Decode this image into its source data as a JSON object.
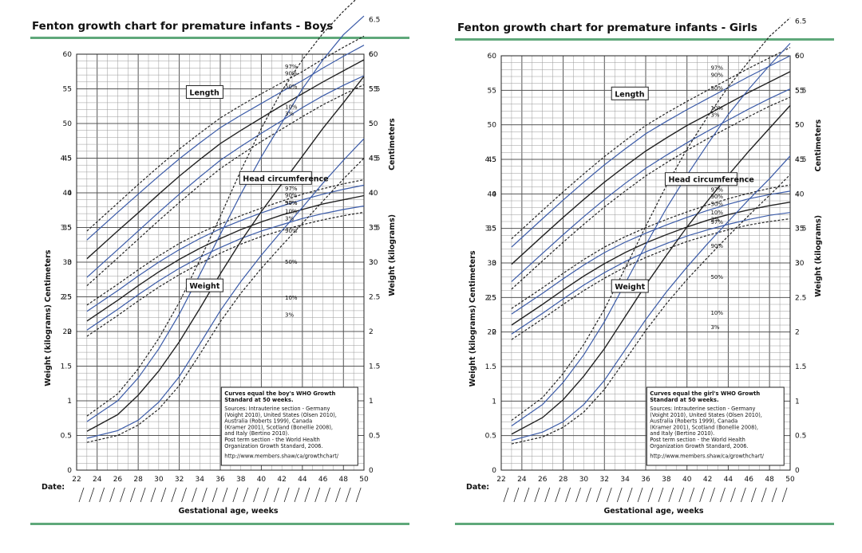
{
  "colors": {
    "median": "#222222",
    "inner": "#3b5ba8",
    "outer": "#222222",
    "rule": "#5fa87a"
  },
  "panels": [
    {
      "title": "Fenton growth chart for premature infants - Boys",
      "info": {
        "heading_lines": [
          "Curves equal the boy's WHO Growth",
          "Standard at 50 weeks."
        ],
        "body_lines": [
          "Sources: Intrauterine section - Germany",
          "(Voight 2010), United States (Olsen 2010),",
          "Australia (Roberts 1999), Canada",
          "(Kramer 2001), Scotland (Bonellie 2008),",
          "and Italy (Bertino 2010).",
          "Post term section - the World Health",
          "Organization Growth Standard, 2006."
        ],
        "url": "http://www.members.shaw/ca/growthchart/"
      }
    },
    {
      "title": "Fenton growth chart for premature infants - Girls",
      "info": {
        "heading_lines": [
          "Curves equal the girl's WHO Growth",
          "Standard at 50 weeks."
        ],
        "body_lines": [
          "Sources: Intrauterine section - Germany",
          "(Voight 2010), United States (Olsen 2010),",
          "Australia (Roberts 1999), Canada",
          "(Kramer 2001), Scotland (Bonellie 2008),",
          "and Italy (Bertino 2010).",
          "Post term section - the World Health",
          "Organization Growth Standard, 2006."
        ],
        "url": "http://www.members.shaw/ca/growthchart/"
      }
    }
  ],
  "chart_data": [
    {
      "type": "line",
      "title": "Fenton growth chart for premature infants - Boys",
      "xlabel": "Gestational age, weeks",
      "x_left_label": "Date:",
      "ylabel_left_top": "Centimeters",
      "ylabel_left_bottom": "Weight (kilograms)",
      "ylabel_right_top": "Centimeters",
      "ylabel_right_bottom": "Weight (kilograms)",
      "xlim": [
        22,
        50
      ],
      "x_ticks": [
        "22",
        "24",
        "26",
        "28",
        "30",
        "32",
        "34",
        "36",
        "38",
        "40",
        "42",
        "44",
        "46",
        "48",
        "50"
      ],
      "cm_ticks_left": [
        "60",
        "55",
        "50",
        "45",
        "40",
        "35",
        "30",
        "25",
        "20"
      ],
      "kg_ticks_left": [
        "4.5",
        "4",
        "3.5",
        "3",
        "2.5",
        "2",
        "1.5",
        "1",
        "0.5",
        "0"
      ],
      "cm_ticks_right": [
        "60",
        "55",
        "50",
        "45",
        "40",
        "35",
        "30"
      ],
      "kg_ticks_right": [
        "6.5",
        "6",
        "5.5",
        "5",
        "4.5",
        "4",
        "3.5",
        "3",
        "2.5",
        "2",
        "1.5",
        "1",
        "0.5",
        "0"
      ],
      "groups": [
        {
          "label": "Length",
          "unit": "cm",
          "percentile_labels": [
            "97%",
            "90%",
            "50%",
            "10%",
            "3%"
          ],
          "x": [
            23,
            26,
            28,
            30,
            32,
            34,
            36,
            38,
            40,
            42,
            44,
            46,
            48,
            50
          ],
          "series": [
            {
              "name": "97%",
              "values": [
                34.5,
                38.5,
                41.2,
                43.8,
                46.3,
                48.6,
                50.8,
                52.6,
                54.3,
                55.9,
                57.5,
                59.3,
                61.0,
                62.6
              ]
            },
            {
              "name": "90%",
              "values": [
                33.2,
                37.2,
                39.8,
                42.4,
                44.9,
                47.2,
                49.4,
                51.2,
                52.9,
                54.6,
                56.2,
                58.0,
                59.7,
                61.3
              ]
            },
            {
              "name": "50%",
              "values": [
                30.5,
                34.5,
                37.1,
                39.8,
                42.4,
                44.8,
                47.1,
                49.0,
                50.8,
                52.6,
                54.3,
                56.0,
                57.6,
                59.2
              ]
            },
            {
              "name": "10%",
              "values": [
                27.8,
                31.8,
                34.5,
                37.2,
                39.8,
                42.3,
                44.7,
                46.7,
                48.6,
                50.4,
                52.3,
                54.0,
                55.5,
                56.9
              ]
            },
            {
              "name": "3%",
              "values": [
                26.6,
                30.6,
                33.3,
                36.0,
                38.6,
                41.1,
                43.5,
                45.5,
                47.4,
                49.2,
                51.0,
                52.7,
                54.2,
                55.6
              ]
            }
          ]
        },
        {
          "label": "Head circumference",
          "unit": "cm",
          "percentile_labels": [
            "97%",
            "90%",
            "50%",
            "10%",
            "3%"
          ],
          "x": [
            23,
            26,
            28,
            30,
            32,
            34,
            36,
            38,
            40,
            42,
            44,
            46,
            48,
            50
          ],
          "series": [
            {
              "name": "97%",
              "values": [
                23.8,
                26.8,
                28.9,
                30.9,
                32.7,
                34.2,
                35.5,
                36.7,
                37.8,
                38.8,
                39.8,
                40.6,
                41.3,
                41.9
              ]
            },
            {
              "name": "90%",
              "values": [
                22.9,
                25.9,
                28.0,
                30.0,
                31.8,
                33.4,
                34.8,
                36.0,
                37.1,
                38.1,
                39.0,
                39.8,
                40.5,
                41.1
              ]
            },
            {
              "name": "50%",
              "values": [
                21.5,
                24.5,
                26.6,
                28.6,
                30.4,
                32.0,
                33.4,
                34.7,
                35.8,
                36.8,
                37.6,
                38.4,
                39.0,
                39.6
              ]
            },
            {
              "name": "10%",
              "values": [
                20.2,
                23.2,
                25.3,
                27.3,
                29.1,
                30.7,
                32.1,
                33.4,
                34.5,
                35.4,
                36.3,
                37.0,
                37.6,
                38.1
              ]
            },
            {
              "name": "3%",
              "values": [
                19.3,
                22.3,
                24.4,
                26.4,
                28.2,
                29.8,
                31.3,
                32.6,
                33.7,
                34.6,
                35.4,
                36.1,
                36.7,
                37.2
              ]
            }
          ]
        },
        {
          "label": "Weight",
          "unit": "kg",
          "percentile_labels": [
            "97%",
            "90%",
            "50%",
            "10%",
            "3%"
          ],
          "x": [
            23,
            26,
            28,
            30,
            32,
            34,
            36,
            38,
            40,
            42,
            44,
            46,
            48,
            50
          ],
          "series": [
            {
              "name": "97%",
              "values": [
                0.78,
                1.1,
                1.46,
                1.9,
                2.42,
                3.03,
                3.66,
                4.32,
                4.93,
                5.47,
                5.92,
                6.3,
                6.62,
                6.9
              ]
            },
            {
              "name": "90%",
              "values": [
                0.7,
                1.0,
                1.33,
                1.75,
                2.25,
                2.82,
                3.4,
                3.98,
                4.52,
                5.01,
                5.5,
                5.92,
                6.28,
                6.55
              ]
            },
            {
              "name": "50%",
              "values": [
                0.56,
                0.8,
                1.08,
                1.43,
                1.85,
                2.33,
                2.83,
                3.3,
                3.73,
                4.13,
                4.53,
                4.93,
                5.3,
                5.68
              ]
            },
            {
              "name": "10%",
              "values": [
                0.46,
                0.57,
                0.72,
                0.98,
                1.35,
                1.82,
                2.3,
                2.72,
                3.1,
                3.45,
                3.79,
                4.14,
                4.47,
                4.78
              ]
            },
            {
              "name": "3%",
              "values": [
                0.4,
                0.5,
                0.65,
                0.88,
                1.22,
                1.67,
                2.14,
                2.55,
                2.91,
                3.24,
                3.56,
                3.88,
                4.2,
                4.5
              ]
            }
          ]
        }
      ]
    },
    {
      "type": "line",
      "title": "Fenton growth chart for premature infants - Girls",
      "xlabel": "Gestational age, weeks",
      "x_left_label": "Date:",
      "ylabel_left_top": "Centimeters",
      "ylabel_left_bottom": "Weight (kilograms)",
      "ylabel_right_top": "Centimeters",
      "ylabel_right_bottom": "Weight (kilograms)",
      "xlim": [
        22,
        50
      ],
      "x_ticks": [
        "22",
        "24",
        "26",
        "28",
        "30",
        "32",
        "34",
        "36",
        "38",
        "40",
        "42",
        "44",
        "46",
        "48",
        "50"
      ],
      "cm_ticks_left": [
        "60",
        "55",
        "50",
        "45",
        "40",
        "35",
        "30",
        "25",
        "20"
      ],
      "kg_ticks_left": [
        "4.5",
        "4",
        "3.5",
        "3",
        "2.5",
        "2",
        "1.5",
        "1",
        "0.5",
        "0"
      ],
      "cm_ticks_right": [
        "60",
        "55",
        "50",
        "45",
        "40",
        "35",
        "30"
      ],
      "kg_ticks_right": [
        "6.5",
        "6",
        "5.5",
        "5",
        "4.5",
        "4",
        "3.5",
        "3",
        "2.5",
        "2",
        "1.5",
        "1",
        "0.5",
        "0"
      ],
      "groups": [
        {
          "label": "Length",
          "unit": "cm",
          "percentile_labels": [
            "97%",
            "90%",
            "50%",
            "10%",
            "3%"
          ],
          "x": [
            23,
            26,
            28,
            30,
            32,
            34,
            36,
            38,
            40,
            42,
            44,
            46,
            48,
            50
          ],
          "series": [
            {
              "name": "97%",
              "values": [
                33.5,
                37.6,
                40.3,
                42.9,
                45.4,
                47.7,
                49.9,
                51.7,
                53.4,
                55.0,
                56.6,
                58.2,
                59.7,
                61.2
              ]
            },
            {
              "name": "90%",
              "values": [
                32.3,
                36.4,
                39.1,
                41.7,
                44.2,
                46.5,
                48.7,
                50.5,
                52.2,
                53.8,
                55.4,
                57.0,
                58.5,
                60.0
              ]
            },
            {
              "name": "50%",
              "values": [
                29.8,
                33.9,
                36.6,
                39.2,
                41.7,
                44.0,
                46.2,
                48.1,
                49.9,
                51.5,
                53.1,
                54.7,
                56.2,
                57.7
              ]
            },
            {
              "name": "10%",
              "values": [
                27.3,
                31.4,
                34.1,
                36.7,
                39.2,
                41.5,
                43.7,
                45.6,
                47.4,
                49.1,
                50.7,
                52.3,
                53.8,
                55.2
              ]
            },
            {
              "name": "3%",
              "values": [
                26.2,
                30.3,
                33.0,
                35.6,
                38.1,
                40.4,
                42.6,
                44.5,
                46.3,
                48.0,
                49.6,
                51.2,
                52.7,
                54.0
              ]
            }
          ]
        },
        {
          "label": "Head circumference",
          "unit": "cm",
          "percentile_labels": [
            "97%",
            "90%",
            "50%",
            "10%",
            "3%"
          ],
          "x": [
            23,
            26,
            28,
            30,
            32,
            34,
            36,
            38,
            40,
            42,
            44,
            46,
            48,
            50
          ],
          "series": [
            {
              "name": "97%",
              "values": [
                23.4,
                26.4,
                28.5,
                30.5,
                32.3,
                33.8,
                35.1,
                36.3,
                37.4,
                38.4,
                39.3,
                40.1,
                40.8,
                41.3
              ]
            },
            {
              "name": "90%",
              "values": [
                22.6,
                25.6,
                27.7,
                29.7,
                31.5,
                33.0,
                34.3,
                35.5,
                36.6,
                37.6,
                38.5,
                39.3,
                39.9,
                40.4
              ]
            },
            {
              "name": "50%",
              "values": [
                21.0,
                24.0,
                26.1,
                28.1,
                29.9,
                31.5,
                32.9,
                34.1,
                35.2,
                36.2,
                37.0,
                37.7,
                38.3,
                38.8
              ]
            },
            {
              "name": "10%",
              "values": [
                19.7,
                22.7,
                24.8,
                26.8,
                28.6,
                30.2,
                31.6,
                32.8,
                33.9,
                34.8,
                35.6,
                36.3,
                36.9,
                37.3
              ]
            },
            {
              "name": "3%",
              "values": [
                18.9,
                21.9,
                24.0,
                26.0,
                27.8,
                29.4,
                30.8,
                32.0,
                33.1,
                34.0,
                34.8,
                35.5,
                36.0,
                36.4
              ]
            }
          ]
        },
        {
          "label": "Weight",
          "unit": "kg",
          "percentile_labels": [
            "97%",
            "90%",
            "50%",
            "10%",
            "3%"
          ],
          "x": [
            23,
            26,
            28,
            30,
            32,
            34,
            36,
            38,
            40,
            42,
            44,
            46,
            48,
            50
          ],
          "series": [
            {
              "name": "97%",
              "values": [
                0.72,
                1.05,
                1.4,
                1.82,
                2.33,
                2.92,
                3.53,
                4.12,
                4.65,
                5.12,
                5.55,
                5.92,
                6.28,
                6.55
              ]
            },
            {
              "name": "90%",
              "values": [
                0.64,
                0.95,
                1.27,
                1.67,
                2.15,
                2.7,
                3.26,
                3.79,
                4.27,
                4.72,
                5.15,
                5.52,
                5.86,
                6.18
              ]
            },
            {
              "name": "50%",
              "values": [
                0.52,
                0.76,
                1.02,
                1.36,
                1.76,
                2.22,
                2.68,
                3.11,
                3.52,
                3.9,
                4.27,
                4.62,
                4.95,
                5.28
              ]
            },
            {
              "name": "10%",
              "values": [
                0.43,
                0.55,
                0.7,
                0.95,
                1.3,
                1.74,
                2.18,
                2.58,
                2.94,
                3.28,
                3.6,
                3.92,
                4.22,
                4.55
              ]
            },
            {
              "name": "3%",
              "values": [
                0.38,
                0.48,
                0.62,
                0.84,
                1.17,
                1.59,
                2.02,
                2.41,
                2.76,
                3.08,
                3.39,
                3.69,
                3.98,
                4.28
              ]
            }
          ]
        }
      ]
    }
  ]
}
